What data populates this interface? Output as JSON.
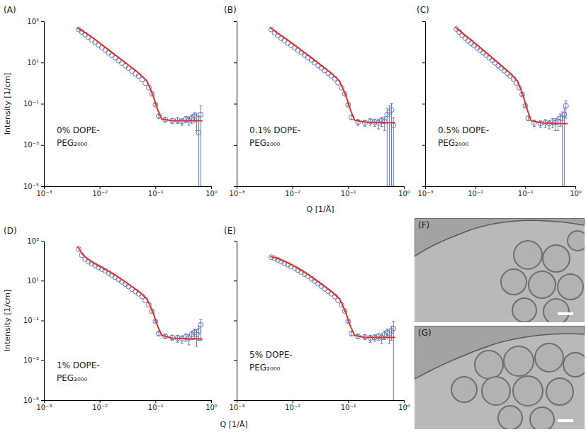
{
  "chart_data": [
    {
      "type": "scatter",
      "title": "(A)",
      "annotations": [
        "0% DOPE-",
        "PEG₂₀₀₀"
      ],
      "ylabel": "Intensity [1/cm]",
      "log": true,
      "grid": false,
      "xlim": [
        0.001,
        1
      ],
      "xticks": [
        {
          "value": 0.001,
          "label": "10⁻³"
        },
        {
          "value": 0.01,
          "label": "10⁻²"
        },
        {
          "value": 0.1,
          "label": "10⁻¹"
        },
        {
          "value": 1,
          "label": "10⁰"
        }
      ],
      "ylim": [
        1e-05,
        1000
      ],
      "yticks": [
        {
          "value": 1e-05,
          "label": "10⁻⁵"
        },
        {
          "value": 0.001,
          "label": "10⁻³"
        },
        {
          "value": 0.1,
          "label": "10⁻¹"
        },
        {
          "value": 10,
          "label": "10¹"
        },
        {
          "value": 1000,
          "label": "10³"
        }
      ],
      "series": [
        {
          "type": "scatter",
          "marker": "circle",
          "color": "#6677bb",
          "x": [
            0.0042,
            0.0048,
            0.0055,
            0.0063,
            0.0072,
            0.0083,
            0.0095,
            0.011,
            0.0126,
            0.0145,
            0.0166,
            0.019,
            0.022,
            0.025,
            0.029,
            0.033,
            0.038,
            0.044,
            0.05,
            0.058,
            0.066,
            0.076,
            0.087,
            0.1,
            0.115,
            0.15,
            0.2,
            0.25,
            0.3,
            0.35,
            0.4,
            0.45,
            0.5,
            0.55,
            0.6,
            0.65
          ],
          "values": [
            400,
            302,
            227,
            171,
            129,
            96,
            72,
            53,
            40,
            29.6,
            22.3,
            16.9,
            12.4,
            9.4,
            6.9,
            5.3,
            3.9,
            2.9,
            2.2,
            1.5,
            1.0,
            0.6,
            0.3,
            0.09,
            0.025,
            0.017,
            0.015,
            0.016,
            0.014,
            0.018,
            0.016,
            0.02,
            0.025,
            0.02,
            0.004,
            0.03
          ],
          "errors": [
            null,
            null,
            null,
            null,
            null,
            null,
            null,
            null,
            null,
            null,
            null,
            null,
            null,
            null,
            null,
            null,
            null,
            null,
            null,
            null,
            null,
            null,
            0.03,
            0.01,
            0.005,
            0.004,
            0.004,
            0.005,
            0.005,
            0.006,
            0.007,
            0.009,
            0.012,
            0.015,
            0.02,
            0.05
          ]
        },
        {
          "type": "line",
          "line_style": "solid",
          "color": "#e0302a",
          "x": [
            0.004,
            0.005,
            0.006,
            0.008,
            0.01,
            0.015,
            0.02,
            0.03,
            0.05,
            0.07,
            0.09,
            0.11,
            0.13,
            0.2,
            0.4,
            0.7
          ],
          "values": [
            470,
            330,
            240,
            140,
            88,
            38,
            21,
            9.1,
            3.1,
            1.3,
            0.27,
            0.05,
            0.018,
            0.015,
            0.015,
            0.015
          ]
        }
      ]
    },
    {
      "type": "scatter",
      "title": "(B)",
      "annotations": [
        "0.1% DOPE-",
        "PEG₂₀₀₀"
      ],
      "xlabel": "Q [1/Å]",
      "log": true,
      "grid": false,
      "tick_labels": "x",
      "xlim": [
        0.001,
        1
      ],
      "xticks": [
        {
          "value": 0.001,
          "label": "10⁻³"
        },
        {
          "value": 0.01,
          "label": "10⁻²"
        },
        {
          "value": 0.1,
          "label": "10⁻¹"
        },
        {
          "value": 1,
          "label": "10⁰"
        }
      ],
      "ylim": [
        1e-05,
        1000
      ],
      "yticks": [
        1e-05,
        0.001,
        0.1,
        10,
        1000
      ],
      "series": [
        {
          "type": "scatter",
          "marker": "circle",
          "color": "#6677bb",
          "x": [
            0.0042,
            0.0048,
            0.0055,
            0.0063,
            0.0072,
            0.0083,
            0.0095,
            0.011,
            0.0126,
            0.0145,
            0.0166,
            0.019,
            0.022,
            0.025,
            0.029,
            0.033,
            0.038,
            0.044,
            0.05,
            0.058,
            0.066,
            0.076,
            0.087,
            0.1,
            0.115,
            0.15,
            0.2,
            0.25,
            0.3,
            0.35,
            0.4,
            0.45,
            0.5,
            0.55,
            0.6,
            0.65
          ],
          "values": [
            400,
            280,
            200,
            150,
            115,
            88,
            68,
            52,
            40,
            30,
            23,
            17.5,
            13,
            9.8,
            7.2,
            5.5,
            4.1,
            3.0,
            2.3,
            1.65,
            1.05,
            0.6,
            0.3,
            0.09,
            0.022,
            0.013,
            0.012,
            0.014,
            0.013,
            0.012,
            0.015,
            0.014,
            0.03,
            0.04,
            0.05,
            0.009
          ],
          "errors": [
            null,
            null,
            null,
            null,
            null,
            null,
            null,
            null,
            null,
            null,
            null,
            null,
            null,
            null,
            null,
            null,
            null,
            null,
            null,
            null,
            null,
            null,
            0.03,
            0.01,
            0.005,
            0.004,
            0.004,
            0.005,
            0.005,
            0.006,
            0.007,
            0.009,
            0.03,
            0.04,
            0.05,
            0.012
          ]
        },
        {
          "type": "line",
          "line_style": "solid",
          "color": "#e0302a",
          "x": [
            0.004,
            0.005,
            0.006,
            0.008,
            0.01,
            0.015,
            0.02,
            0.03,
            0.05,
            0.07,
            0.09,
            0.11,
            0.13,
            0.2,
            0.4,
            0.7
          ],
          "values": [
            480,
            310,
            220,
            130,
            84,
            37,
            20.5,
            8.8,
            3.0,
            1.25,
            0.27,
            0.05,
            0.016,
            0.013,
            0.012,
            0.012
          ]
        }
      ]
    },
    {
      "type": "scatter",
      "title": "(C)",
      "annotations": [
        "0.5% DOPE-",
        "PEG₂₀₀₀"
      ],
      "log": true,
      "grid": false,
      "tick_labels": "x",
      "xlim": [
        0.001,
        1
      ],
      "xticks": [
        {
          "value": 0.001,
          "label": "10⁻³"
        },
        {
          "value": 0.01,
          "label": "10⁻²"
        },
        {
          "value": 0.1,
          "label": "10⁻¹"
        },
        {
          "value": 1,
          "label": "10⁰"
        }
      ],
      "ylim": [
        1e-05,
        1000
      ],
      "yticks": [
        1e-05,
        0.001,
        0.1,
        10,
        1000
      ],
      "series": [
        {
          "type": "scatter",
          "marker": "circle",
          "color": "#6677bb",
          "x": [
            0.0042,
            0.0048,
            0.0055,
            0.0063,
            0.0072,
            0.0083,
            0.0095,
            0.011,
            0.0126,
            0.0145,
            0.0166,
            0.019,
            0.022,
            0.025,
            0.029,
            0.033,
            0.038,
            0.044,
            0.05,
            0.058,
            0.066,
            0.076,
            0.087,
            0.1,
            0.115,
            0.15,
            0.2,
            0.25,
            0.3,
            0.35,
            0.4,
            0.45,
            0.5,
            0.55,
            0.6,
            0.65
          ],
          "values": [
            420,
            300,
            210,
            150,
            112,
            86,
            66,
            51,
            39,
            29.5,
            22.5,
            17,
            12.8,
            9.6,
            7.1,
            5.4,
            4.0,
            2.95,
            2.25,
            1.6,
            1.02,
            0.6,
            0.28,
            0.08,
            0.02,
            0.012,
            0.011,
            0.012,
            0.011,
            0.013,
            0.012,
            0.014,
            0.02,
            0.02,
            0.03,
            0.08
          ],
          "errors": [
            null,
            null,
            null,
            null,
            null,
            null,
            null,
            null,
            null,
            null,
            null,
            null,
            null,
            null,
            null,
            null,
            null,
            null,
            null,
            null,
            null,
            null,
            0.03,
            0.01,
            0.005,
            0.004,
            0.004,
            0.005,
            0.005,
            0.006,
            0.007,
            0.009,
            0.012,
            0.02,
            0.03,
            0.06
          ]
        },
        {
          "type": "line",
          "line_style": "solid",
          "color": "#e0302a",
          "x": [
            0.004,
            0.005,
            0.006,
            0.008,
            0.01,
            0.015,
            0.02,
            0.03,
            0.05,
            0.07,
            0.09,
            0.11,
            0.13,
            0.2,
            0.4,
            0.7
          ],
          "values": [
            500,
            330,
            225,
            132,
            85,
            37,
            20.5,
            8.8,
            3.0,
            1.25,
            0.26,
            0.05,
            0.015,
            0.012,
            0.011,
            0.011
          ]
        }
      ]
    },
    {
      "type": "scatter",
      "title": "(D)",
      "annotations": [
        "1% DOPE-",
        "PEG₂₀₀₀"
      ],
      "ylabel": "Intensity [1/cm]",
      "xlabel": "Q [1/Å]",
      "log": true,
      "grid": false,
      "xlim": [
        0.001,
        1
      ],
      "xticks": [
        {
          "value": 0.001,
          "label": "10⁻³"
        },
        {
          "value": 0.01,
          "label": "10⁻²"
        },
        {
          "value": 0.1,
          "label": "10⁻¹"
        },
        {
          "value": 1,
          "label": "10⁰"
        }
      ],
      "ylim": [
        1e-05,
        1000
      ],
      "yticks": [
        {
          "value": 1e-05,
          "label": "10⁻⁵"
        },
        {
          "value": 0.001,
          "label": "10⁻³"
        },
        {
          "value": 0.1,
          "label": "10⁻¹"
        },
        {
          "value": 10,
          "label": "10¹"
        },
        {
          "value": 1000,
          "label": "10³"
        }
      ],
      "series": [
        {
          "type": "scatter",
          "marker": "circle",
          "color": "#6677bb",
          "x": [
            0.0042,
            0.0048,
            0.0055,
            0.0063,
            0.0072,
            0.0083,
            0.0095,
            0.011,
            0.0126,
            0.0145,
            0.0166,
            0.019,
            0.022,
            0.025,
            0.029,
            0.033,
            0.038,
            0.044,
            0.05,
            0.058,
            0.066,
            0.076,
            0.087,
            0.1,
            0.115,
            0.15,
            0.2,
            0.25,
            0.3,
            0.35,
            0.4,
            0.45,
            0.5,
            0.55,
            0.6,
            0.65
          ],
          "values": [
            380,
            190,
            120,
            90,
            72,
            58,
            47,
            38,
            31,
            24,
            19,
            15,
            11.5,
            8.8,
            6.6,
            5.1,
            3.8,
            2.85,
            2.2,
            1.6,
            1.02,
            0.6,
            0.29,
            0.09,
            0.022,
            0.016,
            0.014,
            0.013,
            0.012,
            0.015,
            0.013,
            0.02,
            0.025,
            0.02,
            0.03,
            0.06
          ],
          "errors": [
            null,
            null,
            null,
            null,
            null,
            null,
            null,
            null,
            null,
            null,
            null,
            null,
            null,
            null,
            null,
            null,
            null,
            null,
            null,
            null,
            null,
            null,
            0.03,
            0.01,
            0.005,
            0.004,
            0.004,
            0.005,
            0.005,
            0.006,
            0.007,
            0.009,
            0.012,
            0.015,
            0.02,
            0.05
          ]
        },
        {
          "type": "line",
          "line_style": "solid",
          "color": "#e0302a",
          "x": [
            0.004,
            0.005,
            0.006,
            0.008,
            0.01,
            0.015,
            0.02,
            0.03,
            0.05,
            0.07,
            0.09,
            0.11,
            0.13,
            0.2,
            0.4,
            0.7
          ],
          "values": [
            520,
            200,
            125,
            75,
            52,
            28,
            17,
            8.0,
            2.9,
            1.22,
            0.27,
            0.05,
            0.018,
            0.013,
            0.012,
            0.012
          ]
        }
      ]
    },
    {
      "type": "scatter",
      "title": "(E)",
      "annotations": [
        "5% DOPE-",
        "PEG₂₀₀₀"
      ],
      "log": true,
      "grid": false,
      "tick_labels": "x",
      "xlim": [
        0.001,
        1
      ],
      "xticks": [
        {
          "value": 0.001,
          "label": "10⁻³"
        },
        {
          "value": 0.01,
          "label": "10⁻²"
        },
        {
          "value": 0.1,
          "label": "10⁻¹"
        },
        {
          "value": 1,
          "label": "10⁰"
        }
      ],
      "ylim": [
        1e-05,
        1000
      ],
      "yticks": [
        1e-05,
        0.001,
        0.1,
        10,
        1000
      ],
      "series": [
        {
          "type": "scatter",
          "marker": "circle",
          "color": "#6677bb",
          "x": [
            0.0042,
            0.0048,
            0.0055,
            0.0063,
            0.0072,
            0.0083,
            0.0095,
            0.011,
            0.0126,
            0.0145,
            0.0166,
            0.019,
            0.022,
            0.025,
            0.029,
            0.033,
            0.038,
            0.044,
            0.05,
            0.058,
            0.066,
            0.076,
            0.087,
            0.1,
            0.115,
            0.15,
            0.2,
            0.25,
            0.3,
            0.35,
            0.4,
            0.45,
            0.5,
            0.55,
            0.6,
            0.65
          ],
          "values": [
            150,
            130,
            110,
            92,
            76,
            63,
            52,
            42,
            34,
            27,
            21,
            16.5,
            12.5,
            9.5,
            7.0,
            5.3,
            3.9,
            2.9,
            2.2,
            1.6,
            1.02,
            0.6,
            0.3,
            0.09,
            0.022,
            0.016,
            0.015,
            0.013,
            0.014,
            0.016,
            0.014,
            0.02,
            0.025,
            0.022,
            0.03,
            0.04
          ],
          "errors": [
            null,
            null,
            null,
            null,
            null,
            null,
            null,
            null,
            null,
            null,
            null,
            null,
            null,
            null,
            null,
            null,
            null,
            null,
            null,
            null,
            null,
            null,
            0.03,
            0.01,
            0.005,
            0.004,
            0.004,
            0.005,
            0.005,
            0.006,
            0.007,
            0.009,
            0.012,
            0.015,
            0.02,
            0.05
          ]
        },
        {
          "type": "line",
          "line_style": "solid",
          "color": "#e0302a",
          "x": [
            0.004,
            0.005,
            0.006,
            0.008,
            0.01,
            0.015,
            0.02,
            0.03,
            0.05,
            0.07,
            0.09,
            0.11,
            0.13,
            0.2,
            0.4,
            0.7
          ],
          "values": [
            160,
            140,
            115,
            82,
            60,
            31,
            18.5,
            8.2,
            2.9,
            1.22,
            0.27,
            0.05,
            0.018,
            0.014,
            0.014,
            0.014
          ]
        }
      ]
    }
  ],
  "images": [
    {
      "label": "(F)"
    },
    {
      "label": "(G)"
    }
  ]
}
